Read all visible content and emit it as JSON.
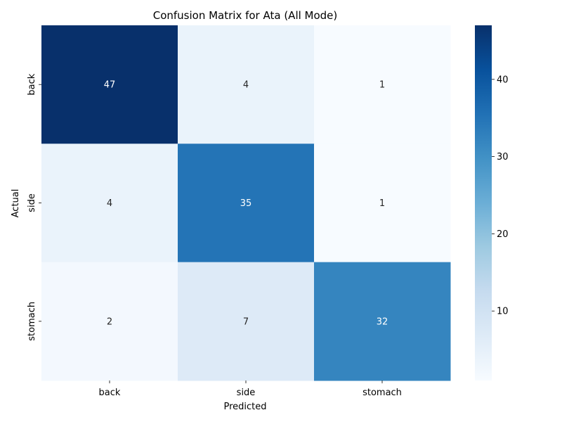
{
  "chart_data": {
    "type": "heatmap",
    "title": "Confusion Matrix for Ata (All Mode)",
    "xlabel": "Predicted",
    "ylabel": "Actual",
    "x_categories": [
      "back",
      "side",
      "stomach"
    ],
    "y_categories": [
      "back",
      "side",
      "stomach"
    ],
    "values": [
      [
        47,
        4,
        1
      ],
      [
        4,
        35,
        1
      ],
      [
        2,
        7,
        32
      ]
    ],
    "colormap": "Blues",
    "vmin": 1,
    "vmax": 47,
    "colorbar_ticks": [
      10,
      20,
      30,
      40
    ],
    "annotate": true,
    "colors": {
      "low": "#f7fbff",
      "high": "#08306b",
      "text_dark": "#262626",
      "text_light": "#ffffff"
    }
  }
}
